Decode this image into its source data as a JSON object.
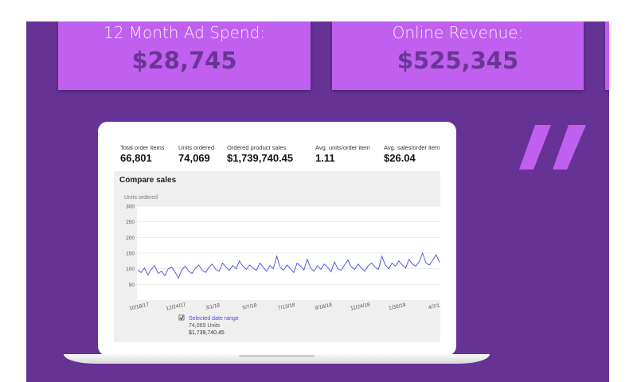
{
  "cards": [
    {
      "label": "12 Month Ad Spend:",
      "value": "$28,745"
    },
    {
      "label": "Online Revenue:",
      "value": "$525,345"
    }
  ],
  "stats": [
    {
      "label": "Total order items",
      "value": "66,801"
    },
    {
      "label": "Units ordered",
      "value": "74,069"
    },
    {
      "label": "Ordered product sales",
      "value": "$1,739,740.45"
    },
    {
      "label": "Avg. units/order item",
      "value": "1.11"
    },
    {
      "label": "Avg. sales/order item",
      "value": "$26.04"
    }
  ],
  "chart_data": {
    "type": "line",
    "title": "Compare sales",
    "y_label": "Units ordered",
    "xtick_labels": [
      "10/18/17",
      "12/24/17",
      "3/1/18",
      "5/7/18",
      "7/13/18",
      "9/18/18",
      "11/24/18",
      "1/30/19",
      "4/7/1"
    ],
    "ylim": [
      0,
      300
    ],
    "yticks": [
      50,
      100,
      150,
      200,
      250,
      300
    ],
    "grid": true,
    "series": [
      {
        "name": "Selected date range",
        "color": "#4a4ae0",
        "values": [
          95,
          88,
          102,
          80,
          98,
          110,
          85,
          92,
          78,
          100,
          105,
          90,
          70,
          97,
          108,
          93,
          85,
          102,
          112,
          95,
          88,
          105,
          115,
          98,
          92,
          118,
          105,
          95,
          110,
          100,
          125,
          108,
          98,
          112,
          102,
          95,
          118,
          105,
          92,
          110,
          100,
          140,
          105,
          95,
          112,
          100,
          88,
          118,
          108,
          96,
          130,
          102,
          92,
          110,
          98,
          115,
          105,
          90,
          122,
          100,
          95,
          112,
          128,
          105,
          98,
          115,
          102,
          92,
          110,
          118,
          105,
          98,
          140,
          112,
          100,
          118,
          108,
          125,
          112,
          102,
          130,
          115,
          108,
          122,
          150,
          118,
          112,
          128,
          145,
          120
        ]
      }
    ],
    "legend": {
      "units": "74,069 Units",
      "sales": "$1,739,740.45"
    }
  }
}
